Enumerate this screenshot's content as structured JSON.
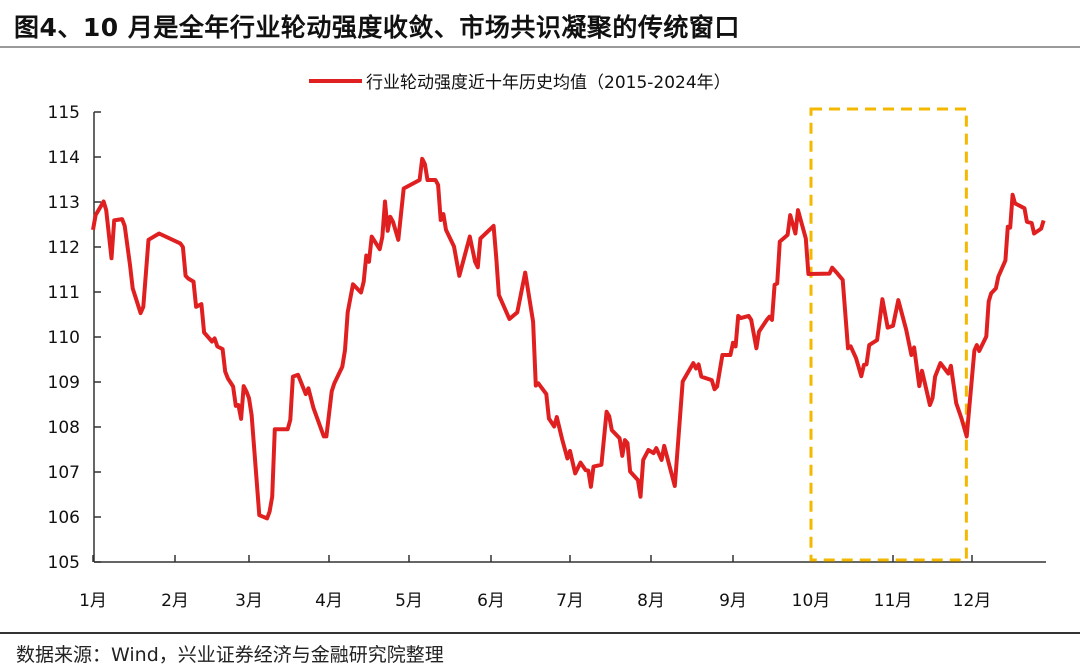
{
  "chart_data": {
    "type": "line",
    "title": "图4、10 月是全年行业轮动强度收敛、市场共识凝聚的传统窗口",
    "xlabel": "",
    "ylabel": "",
    "ylim": [
      105,
      115
    ],
    "yticks": [
      "105",
      "106",
      "107",
      "108",
      "109",
      "110",
      "111",
      "112",
      "113",
      "114",
      "115"
    ],
    "xticks": [
      "1月",
      "2月",
      "3月",
      "4月",
      "5月",
      "6月",
      "7月",
      "8月",
      "9月",
      "10月",
      "11月",
      "12月"
    ],
    "grid": false,
    "legend_position": "top-right",
    "highlight_box": {
      "start": "10-01",
      "end": "11-30",
      "color": "#f5b800",
      "style": "dashed"
    },
    "series": [
      {
        "name": "行业轮动强度近十年历史均值（2015-2024年）",
        "color": "#e02020",
        "points": [
          [
            "01-01",
            112.38
          ],
          [
            "01-02",
            112.71
          ],
          [
            "01-05",
            113.01
          ],
          [
            "01-06",
            112.82
          ],
          [
            "01-08",
            111.75
          ],
          [
            "01-09",
            112.59
          ],
          [
            "01-12",
            112.62
          ],
          [
            "01-13",
            112.47
          ],
          [
            "01-15",
            111.6
          ],
          [
            "01-16",
            111.08
          ],
          [
            "01-19",
            110.53
          ],
          [
            "01-20",
            110.67
          ],
          [
            "01-22",
            112.16
          ],
          [
            "01-26",
            112.3
          ],
          [
            "02-03",
            112.08
          ],
          [
            "02-04",
            112.0
          ],
          [
            "02-05",
            111.36
          ],
          [
            "02-06",
            111.3
          ],
          [
            "02-08",
            111.23
          ],
          [
            "02-09",
            110.67
          ],
          [
            "02-11",
            110.73
          ],
          [
            "02-12",
            110.1
          ],
          [
            "02-15",
            109.9
          ],
          [
            "02-16",
            109.97
          ],
          [
            "02-17",
            109.79
          ],
          [
            "02-19",
            109.73
          ],
          [
            "02-20",
            109.23
          ],
          [
            "02-21",
            109.08
          ],
          [
            "02-23",
            108.9
          ],
          [
            "02-24",
            108.47
          ],
          [
            "02-25",
            108.49
          ],
          [
            "02-26",
            108.18
          ],
          [
            "02-27",
            108.91
          ],
          [
            "02-28",
            108.79
          ],
          [
            "03-01",
            108.64
          ],
          [
            "03-02",
            108.27
          ],
          [
            "03-05",
            106.04
          ],
          [
            "03-08",
            105.97
          ],
          [
            "03-09",
            106.12
          ],
          [
            "03-10",
            106.45
          ],
          [
            "03-11",
            107.95
          ],
          [
            "03-16",
            107.95
          ],
          [
            "03-17",
            108.16
          ],
          [
            "03-18",
            109.12
          ],
          [
            "03-20",
            109.16
          ],
          [
            "03-23",
            108.73
          ],
          [
            "03-24",
            108.86
          ],
          [
            "03-26",
            108.42
          ],
          [
            "03-30",
            107.79
          ],
          [
            "03-31",
            107.79
          ],
          [
            "04-02",
            108.79
          ],
          [
            "04-03",
            108.97
          ],
          [
            "04-06",
            109.34
          ],
          [
            "04-07",
            109.71
          ],
          [
            "04-08",
            110.55
          ],
          [
            "04-10",
            111.17
          ],
          [
            "04-13",
            110.99
          ],
          [
            "04-14",
            111.23
          ],
          [
            "04-15",
            111.81
          ],
          [
            "04-16",
            111.67
          ],
          [
            "04-17",
            112.23
          ],
          [
            "04-20",
            111.95
          ],
          [
            "04-21",
            112.22
          ],
          [
            "04-22",
            113.01
          ],
          [
            "04-23",
            112.36
          ],
          [
            "04-24",
            112.67
          ],
          [
            "04-25",
            112.56
          ],
          [
            "04-27",
            112.16
          ],
          [
            "04-29",
            113.3
          ],
          [
            "05-05",
            113.49
          ],
          [
            "05-06",
            113.96
          ],
          [
            "05-07",
            113.84
          ],
          [
            "05-08",
            113.49
          ],
          [
            "05-11",
            113.49
          ],
          [
            "05-12",
            113.38
          ],
          [
            "05-13",
            112.6
          ],
          [
            "05-14",
            112.73
          ],
          [
            "05-15",
            112.38
          ],
          [
            "05-18",
            112.01
          ],
          [
            "05-20",
            111.36
          ],
          [
            "05-24",
            112.23
          ],
          [
            "05-26",
            111.67
          ],
          [
            "05-27",
            111.55
          ],
          [
            "05-28",
            112.19
          ],
          [
            "06-02",
            112.47
          ],
          [
            "06-03",
            111.75
          ],
          [
            "06-04",
            110.93
          ],
          [
            "06-08",
            110.4
          ],
          [
            "06-11",
            110.55
          ],
          [
            "06-14",
            111.43
          ],
          [
            "06-17",
            110.34
          ],
          [
            "06-18",
            108.92
          ],
          [
            "06-19",
            108.97
          ],
          [
            "06-22",
            108.73
          ],
          [
            "06-23",
            108.19
          ],
          [
            "06-25",
            108.01
          ],
          [
            "06-26",
            108.22
          ],
          [
            "06-28",
            107.73
          ],
          [
            "06-30",
            107.3
          ],
          [
            "07-01",
            107.47
          ],
          [
            "07-03",
            106.97
          ],
          [
            "07-05",
            107.21
          ],
          [
            "07-07",
            107.04
          ],
          [
            "07-08",
            107.03
          ],
          [
            "07-09",
            106.67
          ],
          [
            "07-10",
            107.12
          ],
          [
            "07-13",
            107.16
          ],
          [
            "07-15",
            108.34
          ],
          [
            "07-16",
            108.24
          ],
          [
            "07-17",
            107.93
          ],
          [
            "07-20",
            107.75
          ],
          [
            "07-21",
            107.36
          ],
          [
            "07-22",
            107.71
          ],
          [
            "07-23",
            107.64
          ],
          [
            "07-24",
            107.01
          ],
          [
            "07-27",
            106.82
          ],
          [
            "07-28",
            106.45
          ],
          [
            "07-29",
            107.27
          ],
          [
            "07-31",
            107.49
          ],
          [
            "08-02",
            107.42
          ],
          [
            "08-03",
            107.53
          ],
          [
            "08-05",
            107.27
          ],
          [
            "08-06",
            107.58
          ],
          [
            "08-10",
            106.69
          ],
          [
            "08-13",
            109.01
          ],
          [
            "08-17",
            109.42
          ],
          [
            "08-18",
            109.3
          ],
          [
            "08-19",
            109.39
          ],
          [
            "08-20",
            109.12
          ],
          [
            "08-24",
            109.04
          ],
          [
            "08-25",
            108.84
          ],
          [
            "08-26",
            108.9
          ],
          [
            "08-28",
            109.6
          ],
          [
            "08-31",
            109.6
          ],
          [
            "09-01",
            109.87
          ],
          [
            "09-02",
            109.79
          ],
          [
            "09-03",
            110.47
          ],
          [
            "09-04",
            110.42
          ],
          [
            "09-07",
            110.47
          ],
          [
            "09-08",
            110.38
          ],
          [
            "09-10",
            109.75
          ],
          [
            "09-11",
            110.12
          ],
          [
            "09-14",
            110.38
          ],
          [
            "09-15",
            110.45
          ],
          [
            "09-16",
            110.38
          ],
          [
            "09-17",
            111.16
          ],
          [
            "09-18",
            111.19
          ],
          [
            "09-19",
            112.12
          ],
          [
            "09-22",
            112.27
          ],
          [
            "09-23",
            112.71
          ],
          [
            "09-25",
            112.3
          ],
          [
            "09-26",
            112.82
          ],
          [
            "09-29",
            112.19
          ],
          [
            "09-30",
            111.4
          ],
          [
            "10-08",
            111.41
          ],
          [
            "10-09",
            111.54
          ],
          [
            "10-11",
            111.41
          ],
          [
            "10-13",
            111.27
          ],
          [
            "10-15",
            109.75
          ],
          [
            "10-16",
            109.79
          ],
          [
            "10-18",
            109.53
          ],
          [
            "10-20",
            109.13
          ],
          [
            "10-21",
            109.38
          ],
          [
            "10-22",
            109.39
          ],
          [
            "10-23",
            109.82
          ],
          [
            "10-26",
            109.93
          ],
          [
            "10-28",
            110.84
          ],
          [
            "10-30",
            110.21
          ],
          [
            "11-01",
            110.25
          ],
          [
            "11-03",
            110.82
          ],
          [
            "11-06",
            110.16
          ],
          [
            "11-08",
            109.6
          ],
          [
            "11-09",
            109.77
          ],
          [
            "11-11",
            108.91
          ],
          [
            "11-12",
            109.25
          ],
          [
            "11-15",
            108.49
          ],
          [
            "11-16",
            108.64
          ],
          [
            "11-17",
            109.12
          ],
          [
            "11-19",
            109.42
          ],
          [
            "11-22",
            109.19
          ],
          [
            "11-23",
            109.36
          ],
          [
            "11-25",
            108.53
          ],
          [
            "11-27",
            108.19
          ],
          [
            "11-29",
            107.79
          ],
          [
            "12-02",
            109.7
          ],
          [
            "12-03",
            109.82
          ],
          [
            "12-04",
            109.69
          ],
          [
            "12-07",
            110.01
          ],
          [
            "12-08",
            110.79
          ],
          [
            "12-09",
            110.97
          ],
          [
            "12-11",
            111.08
          ],
          [
            "12-12",
            111.34
          ],
          [
            "12-15",
            111.7
          ],
          [
            "12-16",
            112.45
          ],
          [
            "12-17",
            112.43
          ],
          [
            "12-18",
            113.16
          ],
          [
            "12-19",
            112.97
          ],
          [
            "12-23",
            112.86
          ],
          [
            "12-24",
            112.56
          ],
          [
            "12-26",
            112.53
          ],
          [
            "12-27",
            112.3
          ],
          [
            "12-30",
            112.41
          ],
          [
            "12-31",
            112.59
          ]
        ]
      }
    ]
  },
  "source": "数据来源：Wind，兴业证券经济与金融研究院整理"
}
